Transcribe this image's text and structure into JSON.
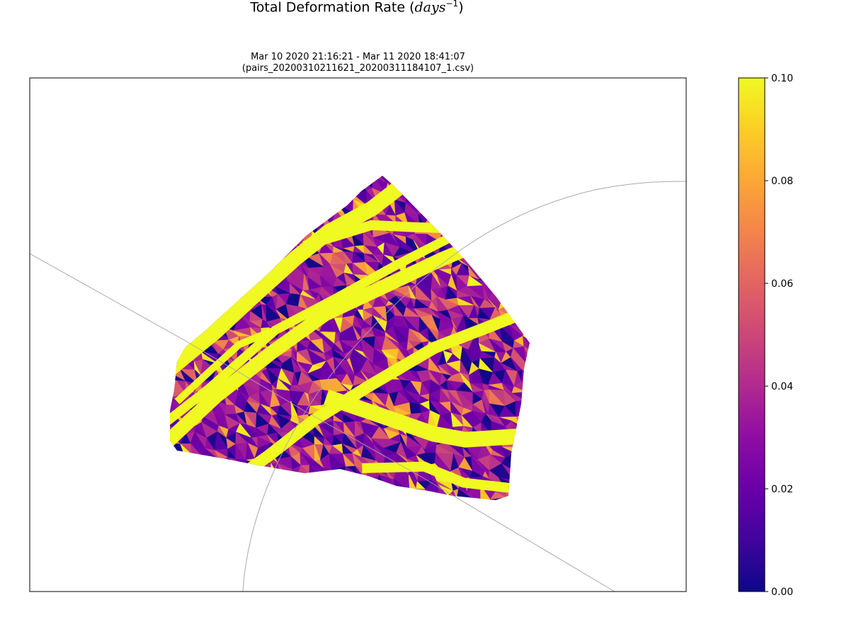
{
  "chart_data": {
    "type": "heatmap",
    "title": "Total Deformation Rate",
    "title_units": "days",
    "title_units_exponent": "−1",
    "subtitle_line1": "Mar 10 2020 21:16:21 - Mar 11 2020 18:41:07",
    "subtitle_line2": "(pairs_20200310211621_20200311184107_1.csv)",
    "colormap": "plasma",
    "colorbar": {
      "vmin": 0.0,
      "vmax": 0.1,
      "ticks": [
        0.0,
        0.02,
        0.04,
        0.06,
        0.08,
        0.1
      ],
      "tick_labels": [
        "0.00",
        "0.02",
        "0.04",
        "0.06",
        "0.08",
        "0.10"
      ]
    },
    "map": {
      "projection": "polar stereographic",
      "graticule_color": "#aaaaaa",
      "grid": false
    },
    "legend": "colorbar-right",
    "colors": {
      "plasma_low": "#0d0887",
      "plasma_high": "#f0f921"
    }
  }
}
